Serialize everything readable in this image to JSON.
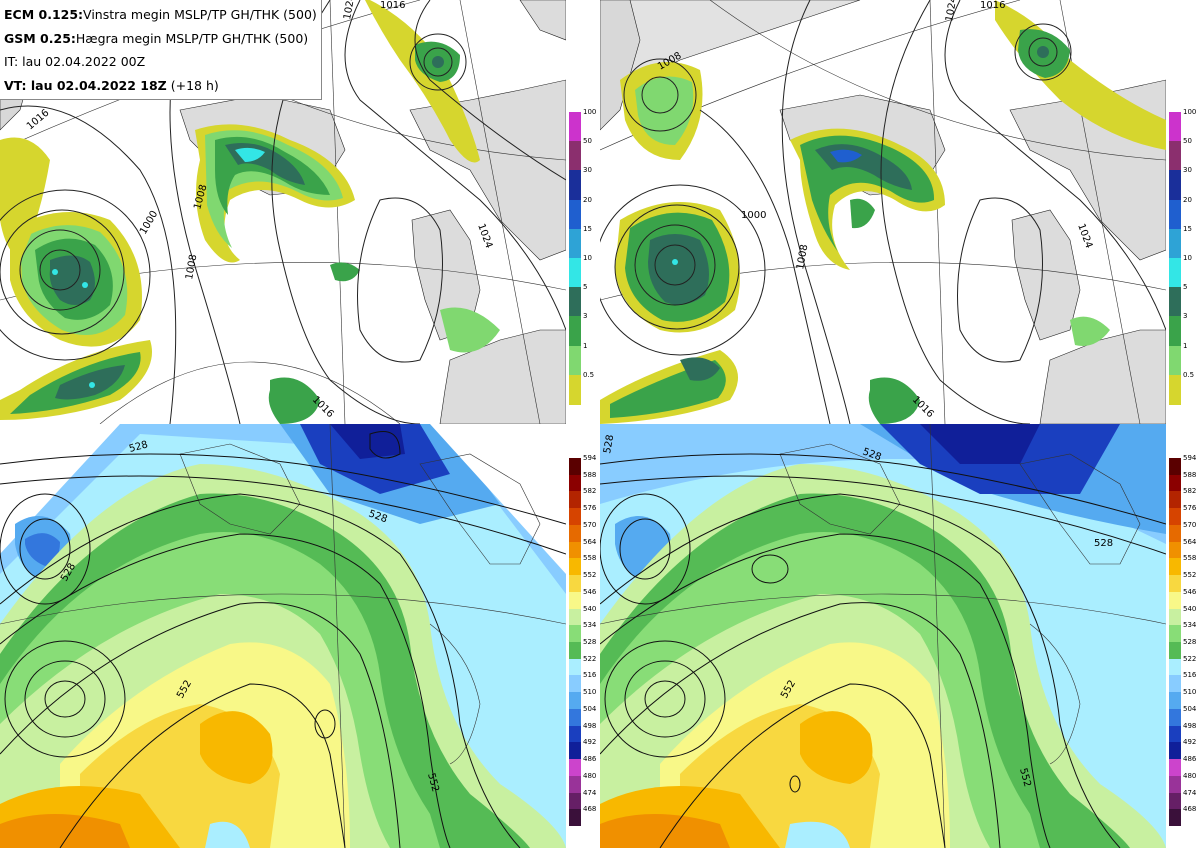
{
  "info": {
    "ecm_model": "ECM 0.125:",
    "ecm_desc": "Vinstra megin MSLP/TP GH/THK (500)",
    "gsm_model": "GSM 0.25:",
    "gsm_desc": "Hægra megin MSLP/TP GH/THK (500)",
    "it_line": "IT: lau 02.04.2022 00Z",
    "vt_label": "VT: lau 02.04.2022 18Z",
    "vt_offset": "(+18 h)"
  },
  "precip_colorbar": {
    "ticks": [
      "100",
      "50",
      "30",
      "20",
      "15",
      "10",
      "5",
      "3",
      "1",
      "0.5"
    ],
    "colors": [
      "#cc33cc",
      "#8b2f6e",
      "#1a2f9a",
      "#1f5fcf",
      "#2ea3d6",
      "#33e6e6",
      "#2e6e5a",
      "#3aa34a",
      "#80d870",
      "#d6d62e"
    ]
  },
  "gh_colorbar": {
    "ticks": [
      "594",
      "588",
      "582",
      "576",
      "570",
      "564",
      "558",
      "552",
      "546",
      "540",
      "534",
      "528",
      "522",
      "516",
      "510",
      "504",
      "498",
      "492",
      "486",
      "480",
      "474",
      "468"
    ],
    "colors": [
      "#5a0000",
      "#8b0000",
      "#b32400",
      "#d64400",
      "#e66a00",
      "#f09000",
      "#f8b800",
      "#f8d840",
      "#f8f888",
      "#c8f0a0",
      "#88dd77",
      "#55bb55",
      "#aaeeff",
      "#88ccff",
      "#55aaf0",
      "#3377dd",
      "#1a3fbf",
      "#101f99",
      "#cc44cc",
      "#993399",
      "#661f66",
      "#3a103a"
    ]
  },
  "isobar_labels": {
    "tl": [
      "1024",
      "1016",
      "1008",
      "1000",
      "1008",
      "1024",
      "1016",
      "1016"
    ],
    "tr": [
      "1016",
      "1024",
      "1008",
      "1000",
      "1008",
      "1024",
      "1016"
    ]
  },
  "thickness_labels": {
    "bl": [
      "528",
      "528",
      "528",
      "552",
      "552"
    ],
    "br": [
      "528",
      "528",
      "528",
      "552",
      "552"
    ]
  }
}
